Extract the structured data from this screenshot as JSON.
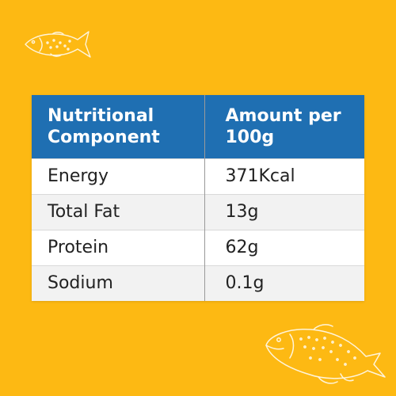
{
  "table": {
    "headers": [
      "Nutritional Component",
      "Amount per 100g"
    ],
    "rows": [
      [
        "Energy",
        "371Kcal"
      ],
      [
        "Total Fat",
        "13g"
      ],
      [
        "Protein",
        "62g"
      ],
      [
        "Sodium",
        "0.1g"
      ]
    ]
  },
  "colors": {
    "background": "#FDB913",
    "header": "#1F6FB2",
    "row_alt": "#F2F2F2"
  },
  "icons": [
    "fish-outline-icon",
    "salmon-outline-icon"
  ]
}
